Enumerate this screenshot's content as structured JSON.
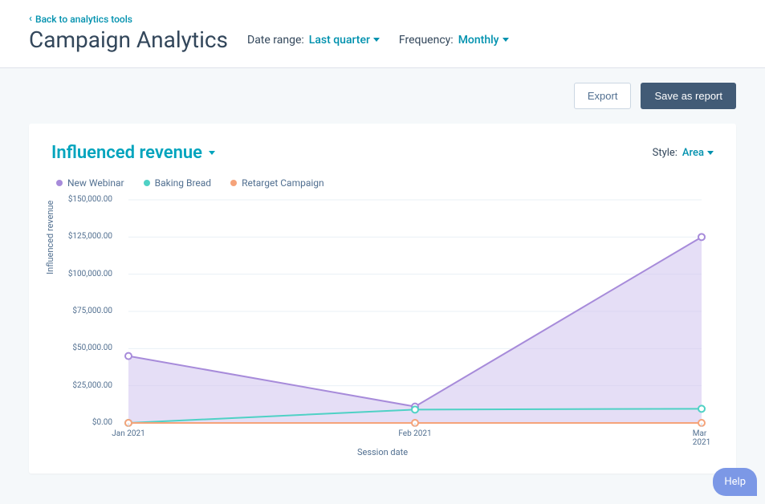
{
  "header": {
    "back_link": "Back to analytics tools",
    "title": "Campaign Analytics",
    "date_range_label": "Date range:",
    "date_range_value": "Last quarter",
    "frequency_label": "Frequency:",
    "frequency_value": "Monthly"
  },
  "actions": {
    "export": "Export",
    "save_report": "Save as report"
  },
  "chart_card": {
    "title": "Influenced revenue",
    "style_label": "Style:",
    "style_value": "Area"
  },
  "chart": {
    "type": "area",
    "xlabel": "Session date",
    "ylabel": "Influenced revenue",
    "ylim": [
      0,
      150000
    ],
    "ytick_step": 25000,
    "ytick_labels": [
      "$0.00",
      "$25,000.00",
      "$50,000.00",
      "$75,000.00",
      "$100,000.00",
      "$125,000.00",
      "$150,000.00"
    ],
    "x_categories": [
      "Jan 2021",
      "Feb 2021",
      "Mar 2021"
    ],
    "background_color": "#ffffff",
    "grid_color": "#eaf0f6",
    "axis_color": "#cbd6e2",
    "label_fontsize": 11,
    "tick_fontsize": 10,
    "series": [
      {
        "name": "New Webinar",
        "color": "#a78bda",
        "fill_color": "#cfc2ee",
        "fill_opacity": 0.55,
        "marker": "hollow-circle",
        "values": [
          45000,
          11000,
          125000
        ]
      },
      {
        "name": "Baking Bread",
        "color": "#4fd1c5",
        "fill_color": "#4fd1c5",
        "fill_opacity": 0.0,
        "marker": "hollow-circle",
        "values": [
          0,
          9000,
          9500
        ]
      },
      {
        "name": "Retarget Campaign",
        "color": "#f5a37a",
        "fill_color": "#f5a37a",
        "fill_opacity": 0.0,
        "marker": "hollow-circle",
        "values": [
          0,
          0,
          0
        ]
      }
    ]
  },
  "help": {
    "label": "Help"
  },
  "colors": {
    "page_bg": "#f5f8fa",
    "card_bg": "#ffffff",
    "text": "#33475b",
    "muted": "#516f90",
    "accent": "#0091ae",
    "primary_btn_bg": "#425b76",
    "secondary_btn_border": "#cbd6e2",
    "help_bg": "#7c98e6"
  }
}
